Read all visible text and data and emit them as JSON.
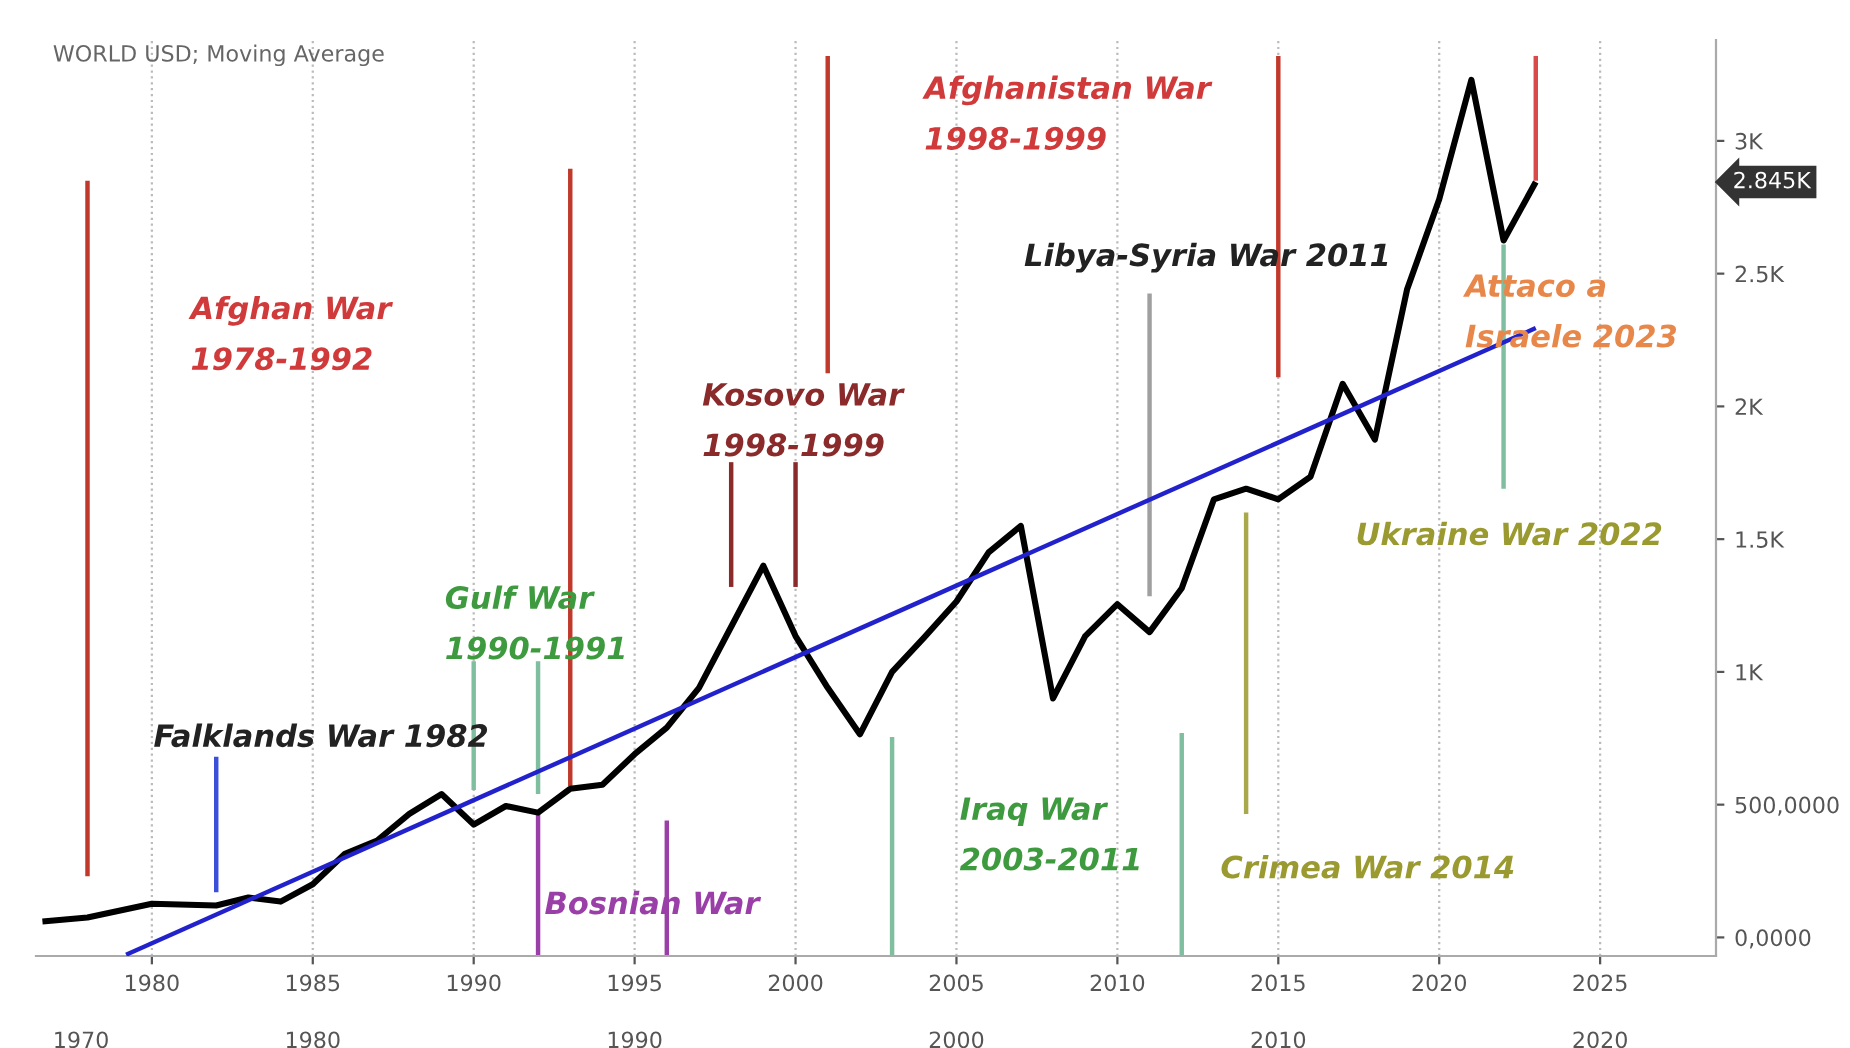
{
  "chart_data": {
    "type": "line",
    "title": "WORLD USD; Moving Average",
    "xlim": [
      1976.4,
      2028.6
    ],
    "ylim": [
      -70,
      3380
    ],
    "xticks": [
      1980,
      1985,
      1990,
      1995,
      2000,
      2005,
      2010,
      2015,
      2020,
      2025
    ],
    "yticks": [
      {
        "value": 0,
        "label": "0,0000"
      },
      {
        "value": 500,
        "label": "500,0000"
      },
      {
        "value": 1000,
        "label": "1K"
      },
      {
        "value": 1500,
        "label": "1.5K"
      },
      {
        "value": 2000,
        "label": "2K"
      },
      {
        "value": 2500,
        "label": "2.5K"
      },
      {
        "value": 3000,
        "label": "3K"
      }
    ],
    "grid": "x",
    "legend": false,
    "marker": "none",
    "line_style": "solid",
    "series": [
      {
        "color": "#000000",
        "x": [
          1976.6,
          1978,
          1980,
          1982,
          1983,
          1984,
          1985,
          1986,
          1987,
          1988,
          1989,
          1990,
          1991,
          1992,
          1993,
          1994,
          1995,
          1996,
          1997,
          1998,
          1999,
          2000,
          2001,
          2002,
          2003,
          2004,
          2005,
          2006,
          2007,
          2008,
          2009,
          2010,
          2011,
          2012,
          2013,
          2014,
          2015,
          2016,
          2017,
          2018,
          2019,
          2020,
          2021,
          2022,
          2023
        ],
        "values": [
          60,
          75,
          127,
          120,
          150,
          135,
          200,
          315,
          365,
          465,
          540,
          425,
          495,
          470,
          560,
          575,
          690,
          790,
          940,
          1170,
          1400,
          1135,
          940,
          765,
          1000,
          1130,
          1265,
          1450,
          1550,
          900,
          1135,
          1255,
          1150,
          1315,
          1650,
          1690,
          1650,
          1735,
          2085,
          1875,
          2440,
          2780,
          3230,
          2625,
          2845
        ]
      },
      {
        "color": "#2222cc",
        "x": [
          1979.2,
          2023
        ],
        "values": [
          -65,
          2295
        ]
      },
      {
        "color": "#c0392b",
        "x": [
          1978,
          1978
        ],
        "values": [
          2850,
          230
        ]
      },
      {
        "color": "#3b4fd8",
        "x": [
          1982,
          1982
        ],
        "values": [
          680,
          170
        ]
      },
      {
        "color": "#7fbf9f",
        "x": [
          1990,
          1990
        ],
        "values": [
          1040,
          555
        ]
      },
      {
        "color": "#7fbf9f",
        "x": [
          1992,
          1992
        ],
        "values": [
          1040,
          540
        ]
      },
      {
        "color": "#c0392b",
        "x": [
          1993,
          1993
        ],
        "values": [
          2895,
          570
        ]
      },
      {
        "color": "#9b3fa8",
        "x": [
          1992,
          1992
        ],
        "values": [
          480,
          -68
        ]
      },
      {
        "color": "#9b3fa8",
        "x": [
          1996,
          1996
        ],
        "values": [
          440,
          -68
        ]
      },
      {
        "color": "#8b2a2a",
        "x": [
          1998,
          1998
        ],
        "values": [
          1790,
          1320
        ]
      },
      {
        "color": "#8b2a2a",
        "x": [
          2000,
          2000
        ],
        "values": [
          1790,
          1320
        ]
      },
      {
        "color": "#c0392b",
        "x": [
          2001,
          2001
        ],
        "values": [
          3320,
          2125
        ]
      },
      {
        "color": "#7fbf9f",
        "x": [
          2003,
          2003
        ],
        "values": [
          755,
          -68
        ]
      },
      {
        "color": "#a0a0a0",
        "x": [
          2011,
          2011
        ],
        "values": [
          2425,
          1285
        ]
      },
      {
        "color": "#7fbf9f",
        "x": [
          2012,
          2012
        ],
        "values": [
          770,
          -68
        ]
      },
      {
        "color": "#a9a84a",
        "x": [
          2014,
          2014
        ],
        "values": [
          1600,
          465
        ]
      },
      {
        "color": "#c0392b",
        "x": [
          2015,
          2015
        ],
        "values": [
          3320,
          2110
        ]
      },
      {
        "color": "#7fbf9f",
        "x": [
          2022,
          2022
        ],
        "values": [
          2610,
          1690
        ]
      },
      {
        "color": "#d94a4a",
        "x": [
          2023,
          2023
        ],
        "values": [
          3320,
          2850
        ]
      }
    ],
    "annotations": [
      "Afghan War\n1978-1992",
      "Kosovo War\n1998-1999",
      "Afghanistan War\n1998-1999",
      "Libya-Syria War 2011",
      "Attaco a\nIsraele 2023",
      "Ukraine War 2022",
      "Gulf War\n1990-1991",
      "Falklands War 1982",
      "Bosnian War",
      "Iraq War\n2003-2011",
      "Crimea War 2014",
      "2.845K",
      "1970",
      "1980",
      "1990",
      "2000",
      "2010",
      "2020"
    ]
  }
}
